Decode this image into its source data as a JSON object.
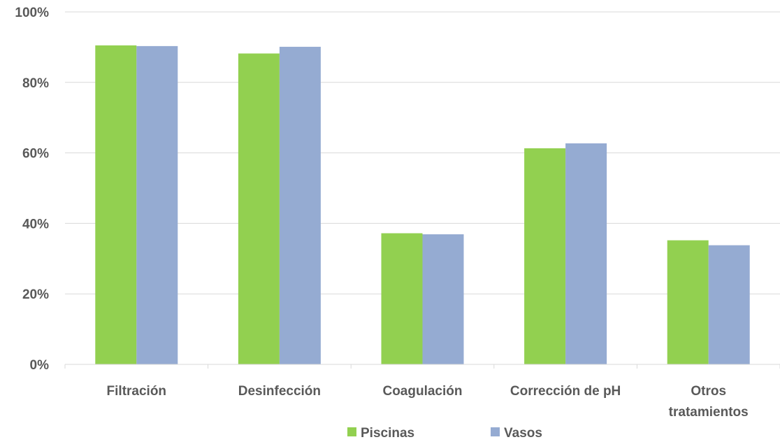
{
  "chart_data": {
    "type": "bar",
    "categories": [
      [
        "Filtración"
      ],
      [
        "Desinfección"
      ],
      [
        "Coagulación"
      ],
      [
        "Corrección de pH"
      ],
      [
        "Otros",
        "tratamientos"
      ]
    ],
    "series": [
      {
        "name": "Piscinas",
        "color": "#92d050",
        "values": [
          90.5,
          88.2,
          37.2,
          61.3,
          35.2
        ]
      },
      {
        "name": "Vasos",
        "color": "#95abd2",
        "values": [
          90.3,
          90.1,
          36.9,
          62.7,
          33.8
        ]
      }
    ],
    "ylim": [
      0,
      100
    ],
    "yticks": [
      "0%",
      "20%",
      "40%",
      "60%",
      "80%",
      "100%"
    ],
    "ytick_values": [
      0,
      20,
      40,
      60,
      80,
      100
    ],
    "grid": true,
    "legend": "bottom-center"
  }
}
